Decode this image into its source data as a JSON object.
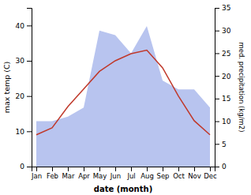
{
  "chart_data": {
    "type": "line",
    "xlabel": "date (month)",
    "ylabel": "max temp (C)",
    "y2label": "med. precipitation (kg/m2)",
    "categories": [
      "Jan",
      "Feb",
      "Mar",
      "Apr",
      "May",
      "Jun",
      "Jul",
      "Aug",
      "Sep",
      "Oct",
      "Nov",
      "Dec"
    ],
    "series": [
      {
        "type": "area",
        "axis": "y2",
        "color": "#b8c4ef",
        "values": [
          10,
          10,
          11,
          13,
          30,
          29,
          25,
          31,
          19,
          17,
          17,
          13
        ]
      },
      {
        "type": "line",
        "color": "#c0392b",
        "values": [
          9,
          11,
          17,
          22,
          27,
          30,
          32,
          33,
          28,
          20,
          13,
          9
        ]
      }
    ],
    "ylim": [
      0,
      45
    ],
    "yticks": [
      0,
      10,
      20,
      30,
      40
    ],
    "y2lim": [
      0,
      35
    ],
    "y2ticks": [
      0,
      5,
      10,
      15,
      20,
      25,
      30,
      35
    ],
    "grid": false
  }
}
